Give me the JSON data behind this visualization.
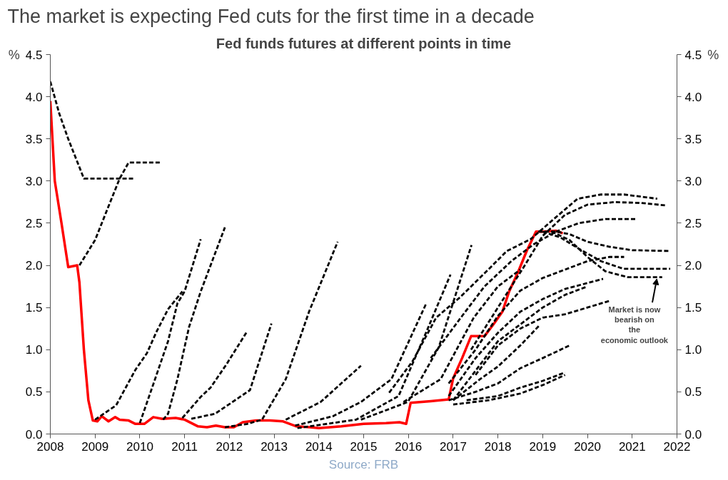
{
  "chart_data": {
    "type": "line",
    "title": "The market is expecting Fed cuts for the first time in a decade",
    "subtitle": "Fed funds futures at different points in time",
    "ylabel": "%",
    "y2label": "%",
    "xlim": [
      2008,
      2022
    ],
    "xticks": [
      2008,
      2009,
      2010,
      2011,
      2012,
      2013,
      2014,
      2015,
      2016,
      2017,
      2018,
      2019,
      2020,
      2021,
      2022
    ],
    "ylim": [
      0,
      4.5
    ],
    "yticks": [
      {
        "value": 0,
        "label": "0.0"
      },
      0.5,
      {
        "value": 1,
        "label": "1.0"
      },
      1.5,
      {
        "value": 2,
        "label": "2.0"
      },
      2.5,
      {
        "value": 3,
        "label": "3.0"
      },
      3.5,
      {
        "value": 4,
        "label": "4.0"
      },
      4.5
    ],
    "y2lim": [
      0,
      4.5
    ],
    "y2ticks": [
      {
        "value": 0,
        "label": "0.0"
      },
      0.5,
      {
        "value": 1,
        "label": "1.0"
      },
      1.5,
      {
        "value": 2,
        "label": "2.0"
      },
      2.5,
      {
        "value": 3,
        "label": "3.0"
      },
      3.5,
      {
        "value": 4,
        "label": "4.0"
      },
      4.5
    ],
    "grid": false,
    "line_style": "dashed",
    "series": [
      {
        "color": "#000000",
        "x": [
          2008.0,
          2008.2,
          2008.4,
          2008.75,
          2009.3,
          2009.85
        ],
        "values": [
          4.18,
          3.8,
          3.5,
          3.03,
          3.03,
          3.03
        ]
      },
      {
        "color": "#000000",
        "x": [
          2008.65,
          2009.0,
          2009.3,
          2009.55,
          2009.75,
          2010.48
        ],
        "values": [
          2.0,
          2.3,
          2.7,
          3.03,
          3.22,
          3.22
        ]
      },
      {
        "color": "#000000",
        "x": [
          2009.0,
          2009.47,
          2009.9,
          2010.16,
          2010.37,
          2010.63,
          2010.95
        ],
        "values": [
          0.17,
          0.34,
          0.76,
          0.96,
          1.21,
          1.48,
          1.69
        ]
      },
      {
        "color": "#000000",
        "x": [
          2010.0,
          2010.32,
          2010.63,
          2010.84,
          2011.0,
          2011.36
        ],
        "values": [
          0.13,
          0.62,
          1.1,
          1.55,
          1.69,
          2.31
        ]
      },
      {
        "color": "#000000",
        "x": [
          2010.52,
          2010.63,
          2010.84,
          2011.1,
          2011.36,
          2011.9
        ],
        "values": [
          0.17,
          0.24,
          0.65,
          1.27,
          1.69,
          2.45
        ]
      },
      {
        "color": "#000000",
        "x": [
          2010.95,
          2011.36,
          2011.58,
          2011.94,
          2012.4
        ],
        "values": [
          0.19,
          0.44,
          0.55,
          0.83,
          1.22
        ]
      },
      {
        "color": "#000000",
        "x": [
          2011.15,
          2011.68,
          2012.46,
          2012.94
        ],
        "values": [
          0.18,
          0.24,
          0.52,
          1.31
        ]
      },
      {
        "color": "#000000",
        "x": [
          2011.9,
          2012.4,
          2012.73,
          2013.26,
          2013.78,
          2014.42
        ],
        "values": [
          0.08,
          0.12,
          0.17,
          0.65,
          1.45,
          2.28
        ]
      },
      {
        "color": "#000000",
        "x": [
          2013.26,
          2014.04,
          2014.94
        ],
        "values": [
          0.17,
          0.38,
          0.81
        ]
      },
      {
        "color": "#000000",
        "x": [
          2013.47,
          2014.31,
          2014.94,
          2015.62,
          2016.4
        ],
        "values": [
          0.1,
          0.21,
          0.38,
          0.65,
          1.55
        ]
      },
      {
        "color": "#000000",
        "x": [
          2013.52,
          2014.83,
          2015.78,
          2016.4,
          2016.94
        ],
        "values": [
          0.07,
          0.17,
          0.45,
          1.21,
          1.89
        ]
      },
      {
        "color": "#000000",
        "x": [
          2014.94,
          2015.99,
          2016.68,
          2017.41
        ],
        "values": [
          0.17,
          0.38,
          1.03,
          2.24
        ]
      },
      {
        "color": "#000000",
        "x": [
          2015.89,
          2016.72,
          2017.46,
          2018.0,
          2018.5
        ],
        "values": [
          0.38,
          0.65,
          1.38,
          1.75,
          1.95
        ]
      },
      {
        "color": "#000000",
        "x": [
          2015.57,
          2016.09,
          2016.62,
          2017.15,
          2017.67,
          2018.2,
          2018.73,
          2019.25,
          2019.78,
          2020.3,
          2020.82,
          2021.56
        ],
        "values": [
          0.49,
          0.86,
          1.38,
          1.62,
          1.89,
          2.17,
          2.31,
          2.55,
          2.79,
          2.84,
          2.84,
          2.79
        ]
      },
      {
        "color": "#000000",
        "x": [
          2017.4,
          2018.0,
          2018.6,
          2019.0,
          2019.5,
          2020.0,
          2020.6,
          2021.2,
          2021.77
        ],
        "values": [
          1.0,
          1.5,
          2.0,
          2.35,
          2.6,
          2.72,
          2.75,
          2.74,
          2.71
        ]
      },
      {
        "color": "#000000",
        "x": [
          2016.5,
          2017.2,
          2017.7,
          2018.3,
          2018.8,
          2019.3,
          2019.8,
          2020.4,
          2021.1
        ],
        "values": [
          0.9,
          1.4,
          1.75,
          2.05,
          2.25,
          2.4,
          2.5,
          2.55,
          2.55
        ]
      },
      {
        "color": "#000000",
        "x": [
          2018.9,
          2019.3,
          2019.6,
          2020.0,
          2020.5,
          2021.0,
          2021.85
        ],
        "values": [
          2.4,
          2.4,
          2.37,
          2.28,
          2.22,
          2.18,
          2.17
        ]
      },
      {
        "color": "#000000",
        "x": [
          2019.0,
          2019.4,
          2019.8,
          2020.3,
          2020.8,
          2021.3,
          2021.85
        ],
        "values": [
          2.4,
          2.33,
          2.2,
          2.05,
          1.96,
          1.96,
          1.96
        ]
      },
      {
        "color": "#000000",
        "x": [
          2019.2,
          2019.6,
          2020.0,
          2020.4,
          2020.9,
          2021.67
        ],
        "values": [
          2.4,
          2.3,
          2.1,
          1.93,
          1.86,
          1.86
        ]
      },
      {
        "color": "#000000",
        "x": [
          2016.9,
          2017.5,
          2018.0,
          2018.5,
          2019.0,
          2019.5,
          2020.0,
          2020.5,
          2020.82
        ],
        "values": [
          0.6,
          1.0,
          1.4,
          1.7,
          1.85,
          1.95,
          2.05,
          2.1,
          2.1
        ]
      },
      {
        "color": "#000000",
        "x": [
          2016.9,
          2017.5,
          2018.0,
          2018.5,
          2019.0,
          2019.5,
          2020.35
        ],
        "values": [
          0.45,
          0.9,
          1.2,
          1.45,
          1.6,
          1.72,
          1.84
        ]
      },
      {
        "color": "#000000",
        "x": [
          2017.0,
          2017.5,
          2018.0,
          2018.5,
          2019.0,
          2019.5,
          2020.0
        ],
        "values": [
          0.4,
          0.75,
          1.1,
          1.3,
          1.5,
          1.65,
          1.75
        ]
      },
      {
        "color": "#000000",
        "x": [
          2017.5,
          2018.0,
          2018.5,
          2019.0,
          2019.5,
          2020.0,
          2020.5
        ],
        "values": [
          0.7,
          1.05,
          1.25,
          1.38,
          1.42,
          1.5,
          1.58
        ]
      },
      {
        "color": "#000000",
        "x": [
          2017.0,
          2017.6,
          2018.0,
          2018.5,
          2018.93
        ],
        "values": [
          0.4,
          0.65,
          0.8,
          1.05,
          1.29
        ]
      },
      {
        "color": "#000000",
        "x": [
          2016.9,
          2017.5,
          2018.0,
          2018.5,
          2019.0,
          2019.6
        ],
        "values": [
          0.4,
          0.5,
          0.6,
          0.78,
          0.9,
          1.05
        ]
      },
      {
        "color": "#000000",
        "x": [
          2017.3,
          2018.0,
          2018.5,
          2019.0,
          2019.5
        ],
        "values": [
          0.4,
          0.45,
          0.55,
          0.63,
          0.73
        ]
      },
      {
        "color": "#000000",
        "x": [
          2017.0,
          2017.8,
          2018.5,
          2019.0,
          2019.5
        ],
        "values": [
          0.35,
          0.4,
          0.48,
          0.58,
          0.7
        ]
      },
      {
        "color": "#ff0000",
        "line_style": "solid",
        "x": [
          2008.0,
          2008.1,
          2008.25,
          2008.4,
          2008.6,
          2008.65,
          2008.75,
          2008.85,
          2008.95,
          2009.05,
          2009.15,
          2009.3,
          2009.45,
          2009.55,
          2009.75,
          2009.9,
          2010.1,
          2010.3,
          2010.5,
          2010.8,
          2011.0,
          2011.3,
          2011.5,
          2011.7,
          2011.9,
          2012.1,
          2012.3,
          2012.6,
          2012.9,
          2013.2,
          2013.5,
          2013.8,
          2014.0,
          2014.5,
          2015.0,
          2015.5,
          2015.8,
          2015.95,
          2016.05,
          2016.5,
          2016.9,
          2017.0,
          2017.2,
          2017.4,
          2017.7,
          2017.9,
          2018.1,
          2018.25,
          2018.45,
          2018.65,
          2018.85,
          2019.0,
          2019.3,
          2019.45
        ],
        "values": [
          3.95,
          3.0,
          2.5,
          1.98,
          2.0,
          1.8,
          1.0,
          0.4,
          0.16,
          0.15,
          0.21,
          0.15,
          0.2,
          0.17,
          0.16,
          0.12,
          0.12,
          0.2,
          0.18,
          0.19,
          0.17,
          0.09,
          0.08,
          0.1,
          0.08,
          0.08,
          0.14,
          0.16,
          0.16,
          0.15,
          0.09,
          0.08,
          0.07,
          0.09,
          0.12,
          0.13,
          0.14,
          0.12,
          0.37,
          0.39,
          0.41,
          0.66,
          0.9,
          1.16,
          1.16,
          1.3,
          1.45,
          1.69,
          1.92,
          2.18,
          2.4,
          2.4,
          2.41,
          2.38
        ]
      }
    ],
    "annotations": [
      {
        "text": "Market is now bearish on the economic outlook",
        "x": 2021.55,
        "y": 1.86
      },
      "Source: FRB"
    ]
  }
}
